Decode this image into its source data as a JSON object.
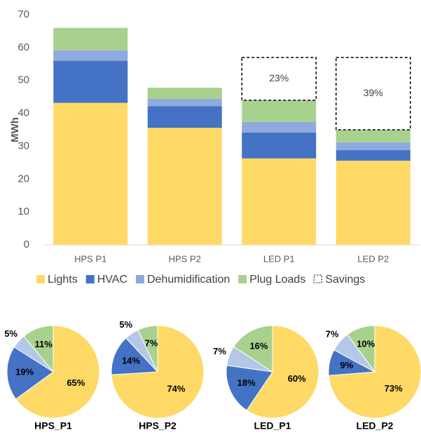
{
  "chart_data": [
    {
      "type": "bar",
      "stacked": true,
      "y_label": "MWh",
      "categories": [
        "HPS P1",
        "HPS P2",
        "LED P1",
        "LED P2"
      ],
      "series": [
        {
          "name": "Lights",
          "color": "#FFD966",
          "values": [
            43.2,
            35.6,
            26.3,
            25.6
          ]
        },
        {
          "name": "HVAC",
          "color": "#4472C4",
          "values": [
            12.8,
            6.6,
            7.9,
            3.2
          ]
        },
        {
          "name": "Dehumidification",
          "color": "#8FAADC",
          "values": [
            3.2,
            2.2,
            3.2,
            2.4
          ]
        },
        {
          "name": "Plug Loads",
          "color": "#A9D18E",
          "values": [
            6.8,
            3.4,
            6.6,
            3.8
          ]
        },
        {
          "name": "Savings",
          "color": "#000000",
          "style": "dashed",
          "values": [
            null,
            null,
            13,
            22
          ]
        }
      ],
      "annotations": [
        null,
        null,
        "23%",
        "39%"
      ],
      "ylim": [
        0,
        70
      ],
      "yticks": [
        0,
        10,
        20,
        30,
        40,
        50,
        60,
        70
      ],
      "grid": false,
      "legend": "bottom"
    },
    {
      "type": "pie",
      "title": "HPS_P1",
      "values": [
        65,
        19,
        5,
        11
      ],
      "value_labels": [
        "65%",
        "19%",
        "5%",
        "11%"
      ],
      "colors": [
        "#FFD966",
        "#4472C4",
        "#B4C7E7",
        "#A9D18E"
      ]
    },
    {
      "type": "pie",
      "title": "HPS_P2",
      "values": [
        74,
        14,
        5,
        7
      ],
      "value_labels": [
        "74%",
        "14%",
        "5%",
        "7%"
      ],
      "colors": [
        "#FFD966",
        "#4472C4",
        "#B4C7E7",
        "#A9D18E"
      ]
    },
    {
      "type": "pie",
      "title": "LED_P1",
      "values": [
        60,
        18,
        7,
        16
      ],
      "value_labels": [
        "60%",
        "18%",
        "7%",
        "16%"
      ],
      "colors": [
        "#FFD966",
        "#4472C4",
        "#B4C7E7",
        "#A9D18E"
      ]
    },
    {
      "type": "pie",
      "title": "LED_P2",
      "values": [
        73,
        9,
        7,
        10
      ],
      "value_labels": [
        "73%",
        "9%",
        "7%",
        "10%"
      ],
      "colors": [
        "#FFD966",
        "#4472C4",
        "#B4C7E7",
        "#A9D18E"
      ]
    }
  ]
}
